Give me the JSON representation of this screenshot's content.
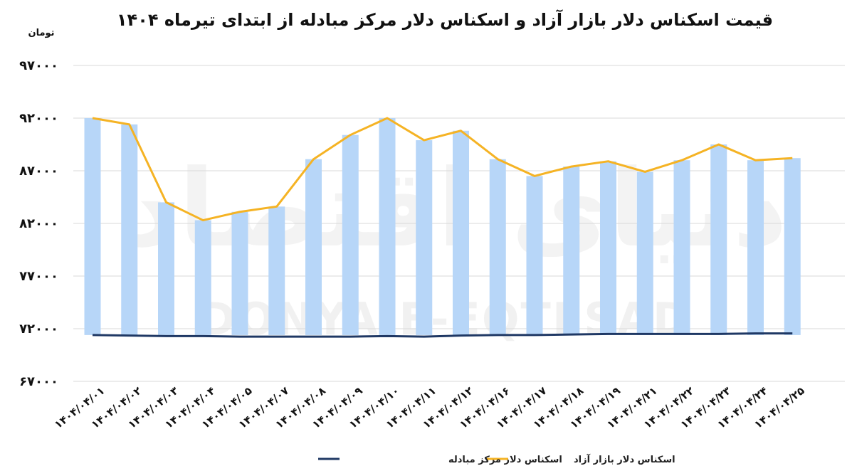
{
  "chart_data": {
    "type": "bar",
    "title": "قیمت اسکناس دلار بازار آزاد و اسکناس دلار مرکز مبادله از ابتدای تیرماه ۱۴۰۴",
    "ylabel": "تومان",
    "ylim": [
      67000,
      97000
    ],
    "yticks": [
      67000,
      72000,
      77000,
      82000,
      87000,
      92000,
      97000
    ],
    "ytick_labels": [
      "۶۷۰۰۰",
      "۷۲۰۰۰",
      "۷۷۰۰۰",
      "۸۲۰۰۰",
      "۸۷۰۰۰",
      "۹۲۰۰۰",
      "۹۷۰۰۰"
    ],
    "bar_base": 71400,
    "categories": [
      "۱۴۰۴/۰۴/۰۱",
      "۱۴۰۴/۰۴/۰۲",
      "۱۴۰۴/۰۴/۰۳",
      "۱۴۰۴/۰۴/۰۴",
      "۱۴۰۴/۰۴/۰۵",
      "۱۴۰۴/۰۴/۰۷",
      "۱۴۰۴/۰۴/۰۸",
      "۱۴۰۴/۰۴/۰۹",
      "۱۴۰۴/۰۴/۱۰",
      "۱۴۰۴/۰۴/۱۱",
      "۱۴۰۴/۰۴/۱۲",
      "۱۴۰۴/۰۴/۱۶",
      "۱۴۰۴/۰۴/۱۷",
      "۱۴۰۴/۰۴/۱۸",
      "۱۴۰۴/۰۴/۱۹",
      "۱۴۰۴/۰۴/۲۱",
      "۱۴۰۴/۰۴/۲۲",
      "۱۴۰۴/۰۴/۲۳",
      "۱۴۰۴/۰۴/۲۴",
      "۱۴۰۴/۰۴/۲۵"
    ],
    "series": [
      {
        "name": "اسکناس دلار بازار آزاد",
        "render": "bar+line",
        "bar_color": "#b7d6f8",
        "line_color": "#f5b324",
        "values": [
          92000,
          91400,
          84000,
          82300,
          83100,
          83600,
          88100,
          90400,
          92000,
          89900,
          90800,
          88100,
          86500,
          87400,
          87900,
          86900,
          88000,
          89500,
          88000,
          88200
        ]
      },
      {
        "name": "اسکناس دلار مرکز مبادله",
        "render": "line",
        "line_color": "#1f3864",
        "values": [
          71400,
          71350,
          71300,
          71300,
          71250,
          71250,
          71250,
          71250,
          71300,
          71250,
          71350,
          71400,
          71400,
          71450,
          71500,
          71500,
          71500,
          71500,
          71550,
          71550
        ]
      }
    ],
    "legend": "bottom",
    "grid": true
  },
  "watermark": {
    "latin": "DONYA-E-EQTESAD",
    "logo": "دنیای اقتصاد"
  }
}
